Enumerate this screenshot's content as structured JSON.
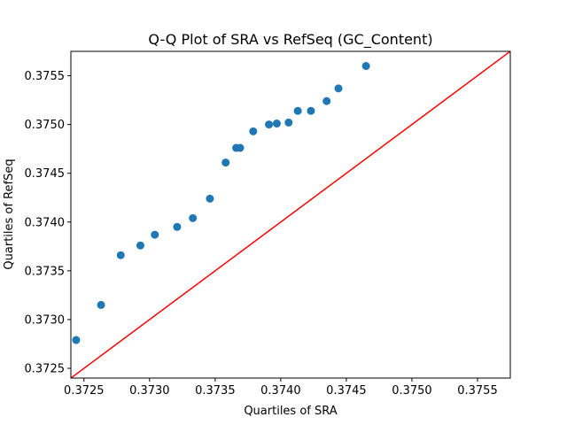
{
  "chart_data": {
    "type": "scatter",
    "title": "Q-Q Plot of SRA vs RefSeq (GC_Content)",
    "xlabel": "Quartiles of SRA",
    "ylabel": "Quartiles of RefSeq",
    "xlim": [
      0.3724,
      0.37575
    ],
    "ylim": [
      0.3724,
      0.37575
    ],
    "xticks": [
      "0.3725",
      "0.3730",
      "0.3735",
      "0.3740",
      "0.3745",
      "0.3750",
      "0.3755"
    ],
    "yticks": [
      "0.3725",
      "0.3730",
      "0.3735",
      "0.3740",
      "0.3745",
      "0.3750",
      "0.3755"
    ],
    "grid": false,
    "points": {
      "x": [
        0.37244,
        0.37263,
        0.37278,
        0.37293,
        0.37304,
        0.37321,
        0.37333,
        0.37346,
        0.37358,
        0.37366,
        0.37369,
        0.37379,
        0.37391,
        0.37397,
        0.37406,
        0.37413,
        0.37423,
        0.37435,
        0.37444,
        0.37465
      ],
      "y": [
        0.37279,
        0.37315,
        0.37366,
        0.37376,
        0.37387,
        0.37395,
        0.37404,
        0.37424,
        0.37461,
        0.37476,
        0.37476,
        0.37493,
        0.375,
        0.37501,
        0.37502,
        0.37514,
        0.37514,
        0.37524,
        0.37537,
        0.3756
      ]
    },
    "reference_line": {
      "from": [
        0.3724,
        0.3724
      ],
      "to": [
        0.37575,
        0.37575
      ]
    },
    "colors": {
      "points": "#1f77b4",
      "line": "#ff0000",
      "axes": "#000000"
    }
  }
}
